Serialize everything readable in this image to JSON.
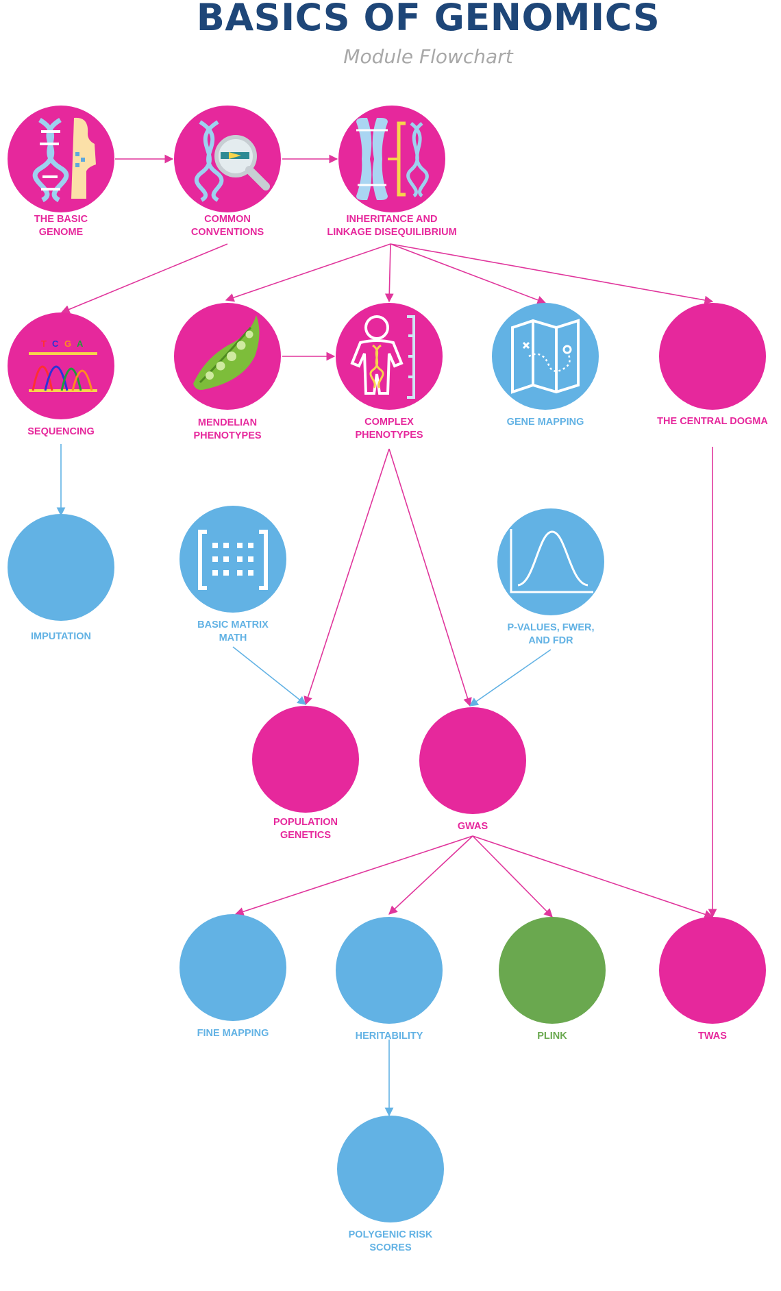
{
  "title": "BASICS OF GENOMICS",
  "subtitle": "Module Flowchart",
  "colors": {
    "pink": "#e6289c",
    "blue": "#62b2e4",
    "green": "#6aa84f",
    "navy": "#1e4678",
    "gray": "#a8a8a8"
  },
  "nodes": {
    "basic_genome": {
      "label": [
        "THE BASIC",
        "GENOME"
      ],
      "icon": "dna-body-icon"
    },
    "common_conventions": {
      "label": [
        "COMMON",
        "CONVENTIONS"
      ],
      "icon": "dna-magnifier-icon"
    },
    "inheritance": {
      "label": [
        "INHERITANCE AND",
        "LINKAGE DISEQUILIBRIUM"
      ],
      "icon": "chromosome-dna-icon"
    },
    "sequencing": {
      "label": [
        "SEQUENCING"
      ],
      "icon": "sequencing-trace-icon"
    },
    "mendelian": {
      "label": [
        "MENDELIAN",
        "PHENOTYPES"
      ],
      "icon": "pea-pod-icon"
    },
    "complex": {
      "label": [
        "COMPLEX",
        "PHENOTYPES"
      ],
      "icon": "person-dna-icon"
    },
    "gene_mapping": {
      "label": [
        "GENE MAPPING"
      ],
      "icon": "map-icon"
    },
    "central_dogma": {
      "label": [
        "THE CENTRAL DOGMA"
      ]
    },
    "imputation": {
      "label": [
        "IMPUTATION"
      ]
    },
    "matrix_math": {
      "label": [
        "BASIC MATRIX",
        "MATH"
      ],
      "icon": "matrix-icon"
    },
    "pvalues": {
      "label": [
        "P-VALUES, FWER,",
        "AND FDR"
      ],
      "icon": "bell-curve-icon"
    },
    "population_genetics": {
      "label": [
        "POPULATION",
        "GENETICS"
      ]
    },
    "gwas": {
      "label": [
        "GWAS"
      ]
    },
    "fine_mapping": {
      "label": [
        "FINE MAPPING"
      ]
    },
    "heritability": {
      "label": [
        "HERITABILITY"
      ]
    },
    "plink": {
      "label": [
        "PLINK"
      ]
    },
    "twas": {
      "label": [
        "TWAS"
      ]
    },
    "prs": {
      "label": [
        "POLYGENIC RISK",
        "SCORES"
      ]
    }
  }
}
